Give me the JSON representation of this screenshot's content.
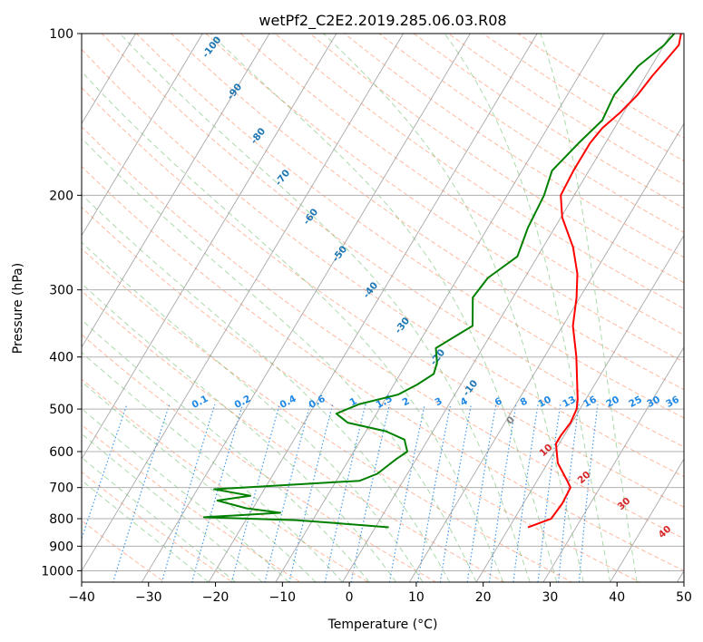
{
  "chart_data": {
    "type": "line",
    "diagram": "skew-T log-P",
    "title": "wetPf2_C2E2.2019.285.06.03.R08",
    "xlabel": "Temperature (°C)",
    "ylabel": "Pressure (hPa)",
    "xlim": [
      -40,
      50
    ],
    "ylim": [
      1050,
      100
    ],
    "y_scale": "log",
    "x_ticks": [
      "−40",
      "−30",
      "−20",
      "−10",
      "0",
      "10",
      "20",
      "30",
      "40",
      "50"
    ],
    "y_ticks": [
      "100",
      "200",
      "300",
      "400",
      "500",
      "600",
      "700",
      "800",
      "900",
      "1000"
    ],
    "grid": true,
    "colors": {
      "temperature": "#ff0000",
      "dewpoint": "#008000",
      "dry_adiabat": "#ff7f50",
      "moist_adiabat": "#2ca02c",
      "mixing_ratio": "#1e88e5",
      "isotherm_label": "#1f77b4",
      "wet_bulb_label": "#d62728",
      "wet_bulb_zero": "#808080"
    },
    "series": [
      {
        "name": "Temperature",
        "color": "#ff0000",
        "points": [
          [
            22.8,
            830
          ],
          [
            25.5,
            800
          ],
          [
            25.8,
            750
          ],
          [
            25.6,
            700
          ],
          [
            24.5,
            680
          ],
          [
            21.5,
            630
          ],
          [
            19.5,
            580
          ],
          [
            19.5,
            560
          ],
          [
            19.8,
            530
          ],
          [
            19.5,
            500
          ],
          [
            18.8,
            480
          ],
          [
            14.8,
            400
          ],
          [
            11.5,
            350
          ],
          [
            9.5,
            310
          ],
          [
            7.5,
            280
          ],
          [
            4.5,
            250
          ],
          [
            0.2,
            220
          ],
          [
            -2.0,
            200
          ],
          [
            -2.3,
            180
          ],
          [
            -2.3,
            160
          ],
          [
            -1.8,
            150
          ],
          [
            -0.5,
            140
          ],
          [
            0.5,
            130
          ],
          [
            1.0,
            120
          ],
          [
            1.8,
            110
          ],
          [
            2.2,
            105
          ],
          [
            1.5,
            100
          ]
        ]
      },
      {
        "name": "Dewpoint",
        "color": "#008000",
        "points": [
          [
            2.0,
            830
          ],
          [
            -6.5,
            815
          ],
          [
            -12.5,
            805
          ],
          [
            -26.5,
            795
          ],
          [
            -15.5,
            780
          ],
          [
            -21.0,
            765
          ],
          [
            -26.0,
            740
          ],
          [
            -21.5,
            725
          ],
          [
            -27.5,
            705
          ],
          [
            -6.5,
            680
          ],
          [
            -4.5,
            660
          ],
          [
            -3.0,
            620
          ],
          [
            -2.0,
            600
          ],
          [
            -3.5,
            570
          ],
          [
            -7.0,
            550
          ],
          [
            -13.5,
            530
          ],
          [
            -16.0,
            510
          ],
          [
            -13.5,
            490
          ],
          [
            -8.5,
            470
          ],
          [
            -6.5,
            450
          ],
          [
            -5.0,
            430
          ],
          [
            -5.5,
            410
          ],
          [
            -7.0,
            385
          ],
          [
            -3.5,
            350
          ],
          [
            -6.0,
            310
          ],
          [
            -5.5,
            285
          ],
          [
            -3.0,
            260
          ],
          [
            -4.0,
            230
          ],
          [
            -4.5,
            200
          ],
          [
            -5.5,
            180
          ],
          [
            -4.0,
            160
          ],
          [
            -2.5,
            145
          ],
          [
            -3.0,
            130
          ],
          [
            -2.0,
            115
          ],
          [
            0.0,
            105
          ],
          [
            0.5,
            100
          ]
        ]
      }
    ],
    "isotherm_labels": [
      "-100",
      "-90",
      "-80",
      "-70",
      "-60",
      "-50",
      "-40",
      "-30",
      "-20",
      "-10"
    ],
    "mixing_ratio_labels": [
      "0.1",
      "0.2",
      "0.4",
      "0.6",
      "1",
      "1.5",
      "2",
      "3",
      "4",
      "6",
      "8",
      "10",
      "13",
      "16",
      "20",
      "25",
      "30",
      "36"
    ],
    "wet_bulb_labels": [
      "0",
      "10",
      "20",
      "30",
      "40"
    ]
  }
}
